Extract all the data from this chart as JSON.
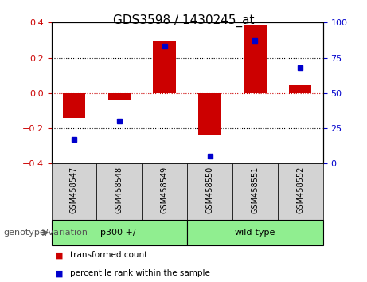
{
  "title": "GDS3598 / 1430245_at",
  "samples": [
    "GSM458547",
    "GSM458548",
    "GSM458549",
    "GSM458550",
    "GSM458551",
    "GSM458552"
  ],
  "transformed_count": [
    -0.14,
    -0.04,
    0.295,
    -0.24,
    0.385,
    0.045
  ],
  "percentile_rank": [
    17,
    30,
    83,
    5,
    87,
    68
  ],
  "groups": [
    {
      "label": "p300 +/-",
      "span": [
        0,
        2
      ],
      "color": "#90EE90"
    },
    {
      "label": "wild-type",
      "span": [
        3,
        5
      ],
      "color": "#90EE90"
    }
  ],
  "group_label": "genotype/variation",
  "bar_color": "#CC0000",
  "dot_color": "#0000CC",
  "bar_width": 0.5,
  "ylim_left": [
    -0.4,
    0.4
  ],
  "ylim_right": [
    0,
    100
  ],
  "yticks_left": [
    -0.4,
    -0.2,
    0.0,
    0.2,
    0.4
  ],
  "yticks_right": [
    0,
    25,
    50,
    75,
    100
  ],
  "hlines": [
    -0.2,
    0.0,
    0.2
  ],
  "hline_colors": [
    "black",
    "#CC0000",
    "black"
  ],
  "hline_styles": [
    "dotted",
    "dotted",
    "dotted"
  ],
  "legend_items": [
    "transformed count",
    "percentile rank within the sample"
  ],
  "tick_label_color_left": "#CC0000",
  "tick_label_color_right": "#0000CC",
  "background_sample_label": "#D3D3D3",
  "title_fontsize": 11,
  "label_fontsize": 8,
  "sample_fontsize": 7
}
